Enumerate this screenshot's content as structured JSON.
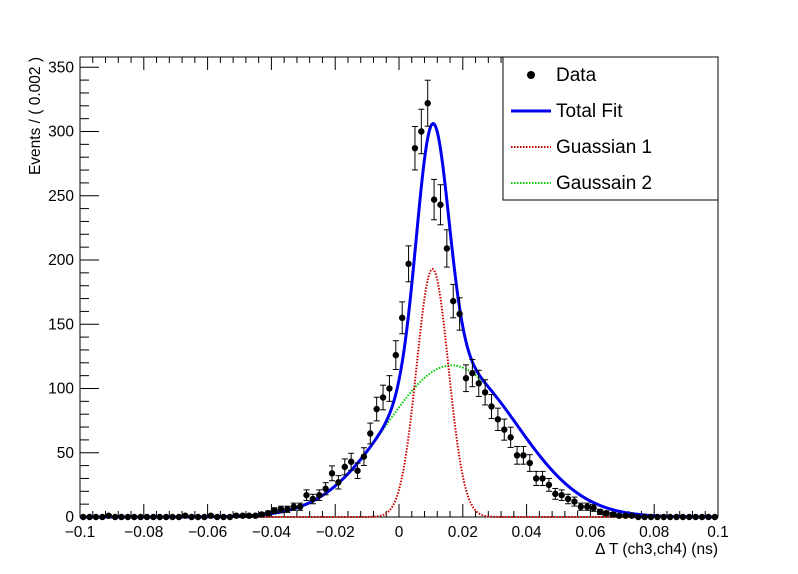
{
  "chart_data": {
    "type": "scatter",
    "xlabel": "Δ T (ch3,ch4) (ns)",
    "ylabel": "Events / ( 0.002 )",
    "xlim": [
      -0.1,
      0.1
    ],
    "ylim": [
      0,
      360
    ],
    "xticks": [
      -0.1,
      -0.08,
      -0.06,
      -0.04,
      -0.02,
      0,
      0.02,
      0.04,
      0.06,
      0.08,
      0.1
    ],
    "xtick_labels": [
      "−0.1",
      "−0.08",
      "−0.06",
      "−0.04",
      "−0.02",
      "0",
      "0.02",
      "0.04",
      "0.06",
      "0.08",
      "0.1"
    ],
    "yticks": [
      0,
      50,
      100,
      150,
      200,
      250,
      300,
      350
    ],
    "ytick_labels": [
      "0",
      "50",
      "100",
      "150",
      "200",
      "250",
      "300",
      "350"
    ],
    "grid": false,
    "legend_position": "top-right",
    "legend": [
      {
        "label": "Data",
        "style": "marker",
        "color": "#000000"
      },
      {
        "label": "Total Fit",
        "style": "solid",
        "color": "#0000ee"
      },
      {
        "label": "Guassian 1",
        "style": "dotted",
        "color": "#cc0000"
      },
      {
        "label": "Gaussain 2",
        "style": "dotted",
        "color": "#00cc00"
      }
    ],
    "series": [
      {
        "name": "Data",
        "kind": "points_with_errors",
        "x": [
          -0.099,
          -0.097,
          -0.095,
          -0.093,
          -0.091,
          -0.089,
          -0.087,
          -0.085,
          -0.083,
          -0.081,
          -0.079,
          -0.077,
          -0.075,
          -0.073,
          -0.071,
          -0.069,
          -0.067,
          -0.065,
          -0.063,
          -0.061,
          -0.059,
          -0.057,
          -0.055,
          -0.053,
          -0.051,
          -0.049,
          -0.047,
          -0.045,
          -0.043,
          -0.041,
          -0.039,
          -0.037,
          -0.035,
          -0.033,
          -0.031,
          -0.029,
          -0.027,
          -0.025,
          -0.023,
          -0.021,
          -0.019,
          -0.017,
          -0.015,
          -0.013,
          -0.011,
          -0.009,
          -0.007,
          -0.005,
          -0.003,
          -0.001,
          0.001,
          0.003,
          0.005,
          0.007,
          0.009,
          0.011,
          0.013,
          0.015,
          0.017,
          0.019,
          0.021,
          0.023,
          0.025,
          0.027,
          0.029,
          0.031,
          0.033,
          0.035,
          0.037,
          0.039,
          0.041,
          0.043,
          0.045,
          0.047,
          0.049,
          0.051,
          0.053,
          0.055,
          0.057,
          0.059,
          0.061,
          0.063,
          0.065,
          0.067,
          0.069,
          0.071,
          0.073,
          0.075,
          0.077,
          0.079,
          0.081,
          0.083,
          0.085,
          0.087,
          0.089,
          0.091,
          0.093,
          0.095,
          0.097,
          0.099
        ],
        "y": [
          0,
          0,
          0,
          0,
          1,
          0,
          0,
          0,
          0,
          0,
          0,
          0,
          0,
          0,
          0,
          0,
          1,
          0,
          0,
          0,
          1,
          0,
          0,
          0,
          1,
          1,
          1,
          1,
          2,
          3,
          5,
          6,
          6,
          8,
          8,
          17,
          14,
          17,
          22,
          34,
          27,
          39,
          43,
          36,
          47,
          65,
          84,
          93,
          100,
          126,
          155,
          197,
          287,
          300,
          322,
          247,
          243,
          209,
          168,
          158,
          108,
          112,
          104,
          97,
          86,
          76,
          68,
          62,
          48,
          48,
          42,
          30,
          30,
          25,
          18,
          17,
          14,
          12,
          8,
          8,
          7,
          4,
          3,
          2,
          1,
          1,
          1,
          0,
          0,
          0,
          0,
          0,
          0,
          0,
          0,
          0,
          0,
          0,
          0,
          0
        ],
        "error": [
          0,
          0,
          0,
          0,
          1,
          0,
          0,
          0,
          0,
          0,
          0,
          0,
          0,
          0,
          0,
          0,
          1,
          0,
          0,
          0,
          1,
          0,
          0,
          0,
          1,
          1,
          1,
          1,
          1.4,
          1.7,
          2.2,
          2.4,
          2.4,
          2.8,
          2.8,
          4.1,
          3.7,
          4.1,
          4.7,
          5.8,
          5.2,
          6.2,
          6.6,
          6,
          6.9,
          8.1,
          9.2,
          9.6,
          10,
          11.2,
          12.4,
          14,
          16.9,
          17.3,
          17.9,
          15.7,
          15.6,
          14.5,
          13,
          12.6,
          10.4,
          10.6,
          10.2,
          9.8,
          9.3,
          8.7,
          8.2,
          7.9,
          6.9,
          6.9,
          6.5,
          5.5,
          5.5,
          5,
          4.2,
          4.1,
          3.7,
          3.5,
          2.8,
          2.8,
          2.6,
          2,
          1.7,
          1.4,
          1,
          1,
          1,
          0,
          0,
          0,
          0,
          0,
          0,
          0,
          0,
          0,
          0,
          0,
          0,
          0
        ]
      },
      {
        "name": "Total Fit",
        "kind": "curve",
        "components": [
          "Guassian 1",
          "Gaussain 2"
        ]
      },
      {
        "name": "Guassian 1",
        "kind": "curve",
        "gaussian": {
          "amplitude": 193,
          "mean": 0.0105,
          "sigma": 0.005
        }
      },
      {
        "name": "Gaussain 2",
        "kind": "curve",
        "gaussian": {
          "amplitude": 118,
          "mean": 0.0165,
          "sigma": 0.0205
        }
      }
    ]
  }
}
